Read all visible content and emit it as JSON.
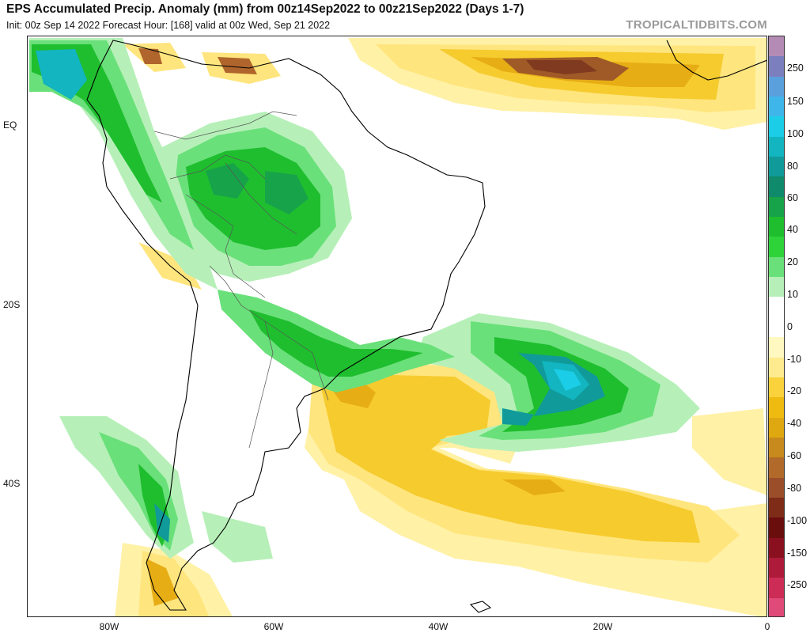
{
  "header": {
    "title": "EPS Accumulated Precip. Anomaly (mm) from 00z14Sep2022 to 00z21Sep2022 (Days 1-7)",
    "subtitle": "Init: 00z Sep 14 2022   Forecast Hour: [168]   valid at 00z Wed, Sep 21 2022",
    "brand": "TROPICALTIDBITS.COM"
  },
  "map": {
    "lat_labels": [
      "EQ",
      "20S",
      "40S"
    ],
    "lon_labels": [
      "80W",
      "60W",
      "40W",
      "20W",
      "0"
    ],
    "colors": {
      "ocean": "#ffffff",
      "land": "#ffffff",
      "border": "#000000",
      "admin": "#8a8a8a"
    }
  },
  "colorbar": {
    "labels": [
      "250",
      "150",
      "100",
      "80",
      "60",
      "40",
      "20",
      "10",
      "0",
      "-10",
      "-20",
      "-40",
      "-60",
      "-80",
      "-100",
      "-150",
      "-250"
    ],
    "colors": [
      "#b48bb4",
      "#7b7fbe",
      "#5aa0dd",
      "#3fb6ea",
      "#1ccde8",
      "#12b5c0",
      "#109a9a",
      "#0f8a6a",
      "#17a34a",
      "#1fbe2f",
      "#2ed33a",
      "#6ae07a",
      "#b6f0b8",
      "#ffffff",
      "#ffffff",
      "#fff8c0",
      "#ffeb8f",
      "#f9d23c",
      "#f0bb10",
      "#e0a810",
      "#c88a1c",
      "#b26a2a",
      "#9a4e2a",
      "#7e2c18",
      "#6a0d0d",
      "#8a1020",
      "#ad1a3a",
      "#cc2c55",
      "#df4a78"
    ]
  }
}
